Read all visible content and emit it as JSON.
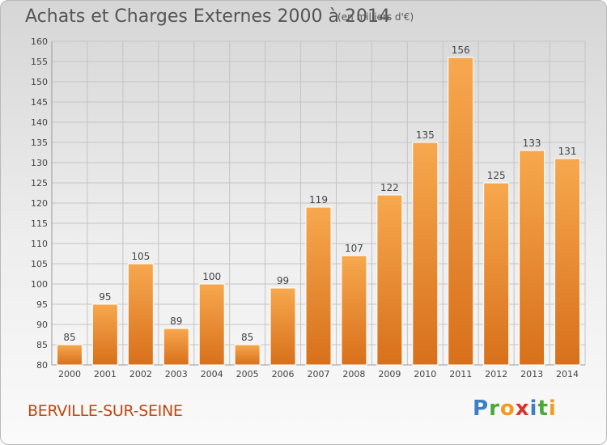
{
  "header": {
    "title": "Achats et Charges Externes 2000 à 2014",
    "subtitle": "(en milliers d'€)"
  },
  "footer": {
    "commune": "BERVILLE-SUR-SEINE",
    "logo_letters": [
      {
        "char": "P",
        "color": "#3d7fc4"
      },
      {
        "char": "r",
        "color": "#4aa83a"
      },
      {
        "char": "o",
        "color": "#f39a1f"
      },
      {
        "char": "x",
        "color": "#d8342a"
      },
      {
        "char": "i",
        "color": "#3d7fc4"
      },
      {
        "char": "t",
        "color": "#4aa83a"
      },
      {
        "char": "i",
        "color": "#f39a1f"
      }
    ]
  },
  "colors": {
    "bar_top": "#f7a84e",
    "bar_bottom": "#d8701b",
    "bar_stroke": "#ffffff",
    "grid": "#c4c4c4",
    "text": "#444444"
  },
  "chart_data": {
    "type": "bar",
    "categories": [
      "2000",
      "2001",
      "2002",
      "2003",
      "2004",
      "2005",
      "2006",
      "2007",
      "2008",
      "2009",
      "2010",
      "2011",
      "2012",
      "2013",
      "2014"
    ],
    "values": [
      85,
      95,
      105,
      89,
      100,
      85,
      99,
      119,
      107,
      122,
      135,
      156,
      125,
      133,
      131
    ],
    "yticks": [
      80,
      85,
      90,
      95,
      100,
      105,
      110,
      115,
      120,
      125,
      130,
      135,
      140,
      145,
      150,
      155,
      160
    ],
    "ylim": [
      80,
      160
    ],
    "grid": true,
    "legend": "none",
    "data_labels": true
  }
}
